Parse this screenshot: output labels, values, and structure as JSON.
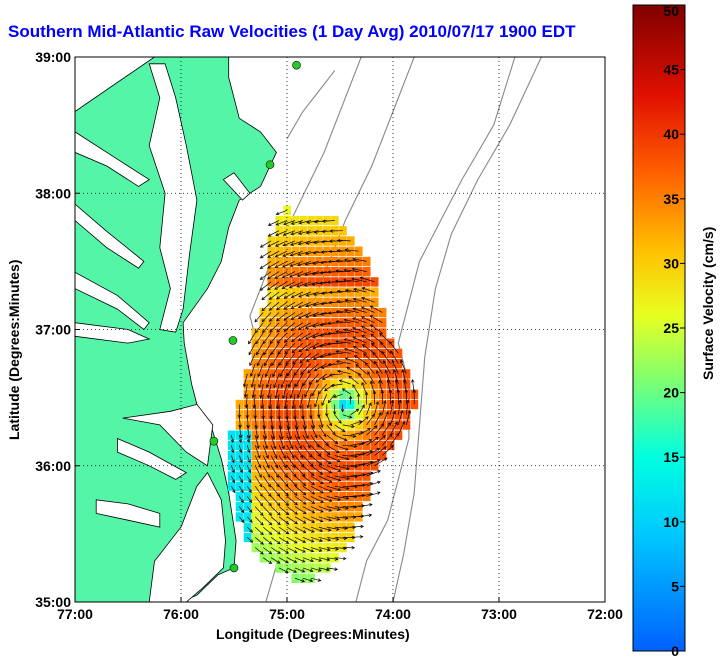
{
  "title": "Southern Mid-Atlantic Raw Velocities (1 Day Avg) 2010/07/17 1900 EDT",
  "map": {
    "xlabel": "Longitude (Degrees:Minutes)",
    "ylabel": "Latitude (Degrees:Minutes)",
    "lon_ticks": [
      "77:00",
      "76:00",
      "75:00",
      "74:00",
      "73:00",
      "72:00"
    ],
    "lat_ticks": [
      "39:00",
      "38:00",
      "37:00",
      "36:00",
      "35:00"
    ],
    "lon_range": [
      -77,
      -72
    ],
    "lat_range": [
      35,
      39
    ],
    "land_color": "#55f5a8",
    "contour_color": "#888888",
    "station_color": "#22cc22",
    "stations": [
      {
        "lon": -74.91,
        "lat": 38.94
      },
      {
        "lon": -75.16,
        "lat": 38.21
      },
      {
        "lon": -75.51,
        "lat": 36.92
      },
      {
        "lon": -75.69,
        "lat": 36.18
      },
      {
        "lon": -75.5,
        "lat": 35.25
      }
    ]
  },
  "colorbar": {
    "label": "Surface Velocity (cm/s)",
    "ticks": [
      "0",
      "5",
      "10",
      "15",
      "20",
      "25",
      "30",
      "35",
      "40",
      "45",
      "50"
    ],
    "min": 0,
    "max": 50
  },
  "velocity_field": {
    "eddy_center": {
      "lon": -74.45,
      "lat": 36.45
    },
    "vector_grid_deg": 0.075
  }
}
